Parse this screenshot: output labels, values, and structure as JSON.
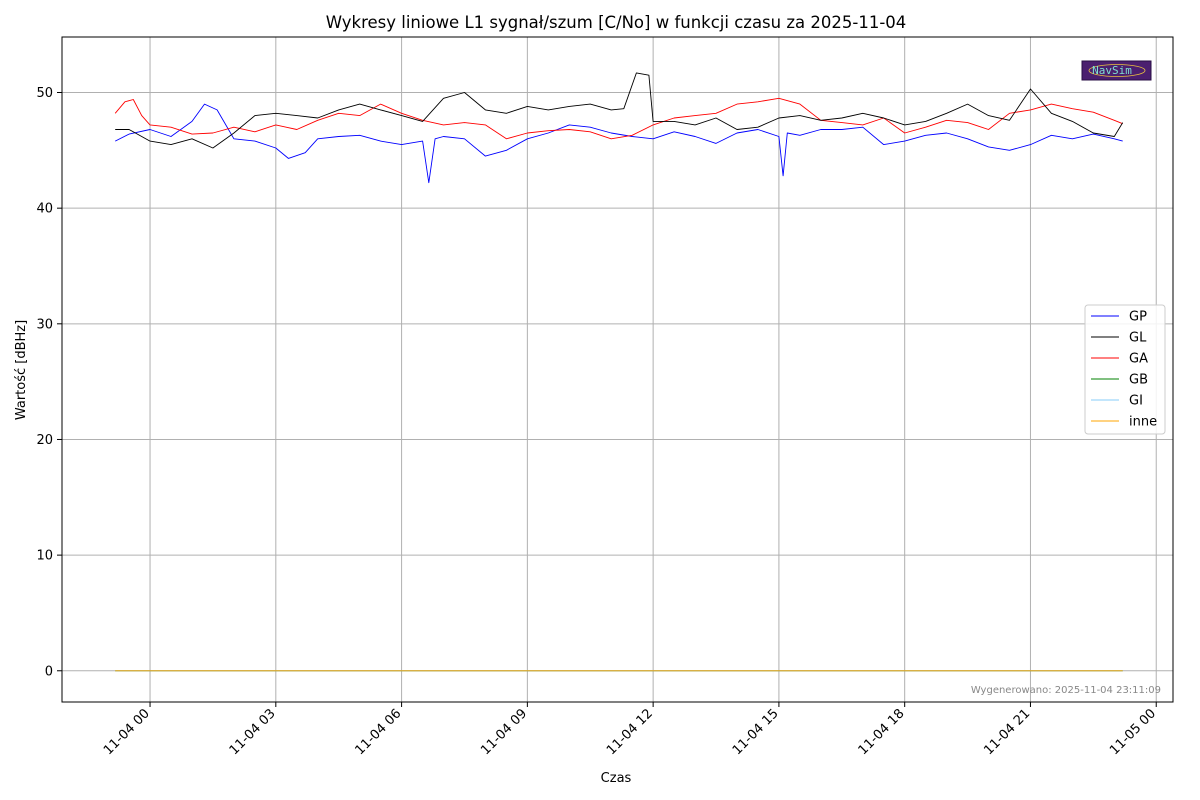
{
  "logo": {
    "text": "NavSim"
  },
  "footer": "Wygenerowano: 2025-11-04 23:11:09",
  "chart_data": {
    "type": "line",
    "title": "Wykresy liniowe L1 sygnał/szum [C/No] w funkcji czasu za 2025-11-04",
    "xlabel": "Czas",
    "ylabel": "Wartość [dBHz]",
    "x_unit": "hours of 2025-11-04 (24 = 2025-11-05 00:00)",
    "xlim": [
      -2.1,
      24.4
    ],
    "ylim": [
      -2.7,
      54.8
    ],
    "x_ticks": [
      {
        "value": 0,
        "label": "11-04 00"
      },
      {
        "value": 3,
        "label": "11-04 03"
      },
      {
        "value": 6,
        "label": "11-04 06"
      },
      {
        "value": 9,
        "label": "11-04 09"
      },
      {
        "value": 12,
        "label": "11-04 12"
      },
      {
        "value": 15,
        "label": "11-04 15"
      },
      {
        "value": 18,
        "label": "11-04 18"
      },
      {
        "value": 21,
        "label": "11-04 21"
      },
      {
        "value": 24,
        "label": "11-05 00"
      }
    ],
    "y_ticks": [
      0,
      10,
      20,
      30,
      40,
      50
    ],
    "grid": true,
    "legend_position": "center-right",
    "series": [
      {
        "name": "GP",
        "color": "#0000ff",
        "x": [
          -0.83,
          -0.5,
          0,
          0.5,
          1.0,
          1.3,
          1.6,
          2.0,
          2.5,
          3.0,
          3.3,
          3.7,
          4.0,
          4.5,
          5.0,
          5.5,
          6.0,
          6.5,
          6.65,
          6.8,
          7.0,
          7.5,
          8.0,
          8.5,
          9.0,
          9.5,
          10.0,
          10.5,
          11.0,
          11.5,
          12.0,
          12.5,
          13.0,
          13.5,
          14.0,
          14.5,
          15.0,
          15.1,
          15.2,
          15.5,
          16.0,
          16.5,
          17.0,
          17.5,
          18.0,
          18.5,
          19.0,
          19.5,
          20.0,
          20.5,
          21.0,
          21.5,
          22.0,
          22.5,
          23.0,
          23.2
        ],
        "y": [
          45.8,
          46.4,
          46.8,
          46.2,
          47.5,
          49.0,
          48.5,
          46.0,
          45.8,
          45.2,
          44.3,
          44.8,
          46.0,
          46.2,
          46.3,
          45.8,
          45.5,
          45.8,
          42.2,
          46.0,
          46.2,
          46.0,
          44.5,
          45.0,
          46.0,
          46.5,
          47.2,
          47.0,
          46.5,
          46.2,
          46.0,
          46.6,
          46.2,
          45.6,
          46.5,
          46.8,
          46.2,
          42.8,
          46.5,
          46.3,
          46.8,
          46.8,
          47.0,
          45.5,
          45.8,
          46.3,
          46.5,
          46.0,
          45.3,
          45.0,
          45.5,
          46.3,
          46.0,
          46.4,
          46.0,
          45.8
        ]
      },
      {
        "name": "GL",
        "color": "#000000",
        "x": [
          -0.83,
          -0.5,
          0,
          0.5,
          1.0,
          1.5,
          2.0,
          2.5,
          3.0,
          3.5,
          4.0,
          4.5,
          5.0,
          5.5,
          6.0,
          6.5,
          7.0,
          7.5,
          8.0,
          8.5,
          9.0,
          9.5,
          10.0,
          10.5,
          11.0,
          11.3,
          11.6,
          11.9,
          12.0,
          12.5,
          13.0,
          13.5,
          14.0,
          14.5,
          15.0,
          15.5,
          16.0,
          16.5,
          17.0,
          17.5,
          18.0,
          18.5,
          19.0,
          19.5,
          20.0,
          20.5,
          21.0,
          21.5,
          22.0,
          22.5,
          23.0,
          23.2
        ],
        "y": [
          46.8,
          46.8,
          45.8,
          45.5,
          46.0,
          45.2,
          46.5,
          48.0,
          48.2,
          48.0,
          47.8,
          48.5,
          49.0,
          48.5,
          48.0,
          47.5,
          49.5,
          50.0,
          48.5,
          48.2,
          48.8,
          48.5,
          48.8,
          49.0,
          48.5,
          48.6,
          51.7,
          51.5,
          47.5,
          47.5,
          47.2,
          47.8,
          46.8,
          47.0,
          47.8,
          48.0,
          47.6,
          47.8,
          48.2,
          47.8,
          47.2,
          47.5,
          48.2,
          49.0,
          48.0,
          47.6,
          50.3,
          48.2,
          47.5,
          46.5,
          46.2,
          47.4
        ]
      },
      {
        "name": "GA",
        "color": "#ff0000",
        "x": [
          -0.83,
          -0.6,
          -0.4,
          -0.2,
          0,
          0.5,
          1.0,
          1.5,
          2.0,
          2.5,
          3.0,
          3.5,
          4.0,
          4.5,
          5.0,
          5.5,
          6.0,
          6.5,
          7.0,
          7.5,
          8.0,
          8.5,
          9.0,
          9.5,
          10.0,
          10.5,
          11.0,
          11.5,
          12.0,
          12.5,
          13.0,
          13.5,
          14.0,
          14.5,
          15.0,
          15.5,
          16.0,
          16.5,
          17.0,
          17.5,
          18.0,
          18.5,
          19.0,
          19.5,
          20.0,
          20.5,
          21.0,
          21.5,
          22.0,
          22.5,
          23.0,
          23.2
        ],
        "y": [
          48.2,
          49.2,
          49.4,
          48.0,
          47.2,
          47.0,
          46.4,
          46.5,
          47.0,
          46.6,
          47.2,
          46.8,
          47.6,
          48.2,
          48.0,
          49.0,
          48.2,
          47.6,
          47.2,
          47.4,
          47.2,
          46.0,
          46.5,
          46.7,
          46.8,
          46.6,
          46.0,
          46.3,
          47.2,
          47.8,
          48.0,
          48.2,
          49.0,
          49.2,
          49.5,
          49.0,
          47.6,
          47.4,
          47.2,
          47.8,
          46.5,
          47.0,
          47.6,
          47.4,
          46.8,
          48.2,
          48.5,
          49.0,
          48.6,
          48.3,
          47.6,
          47.3
        ]
      },
      {
        "name": "GB",
        "color": "#008000",
        "x": [
          -0.83,
          23.2
        ],
        "y": [
          0,
          0
        ]
      },
      {
        "name": "GI",
        "color": "#87cefa",
        "x": [
          -0.83,
          23.2
        ],
        "y": [
          0,
          0
        ]
      },
      {
        "name": "inne",
        "color": "#ffa500",
        "x": [
          -0.83,
          23.2
        ],
        "y": [
          0,
          0
        ]
      }
    ]
  }
}
